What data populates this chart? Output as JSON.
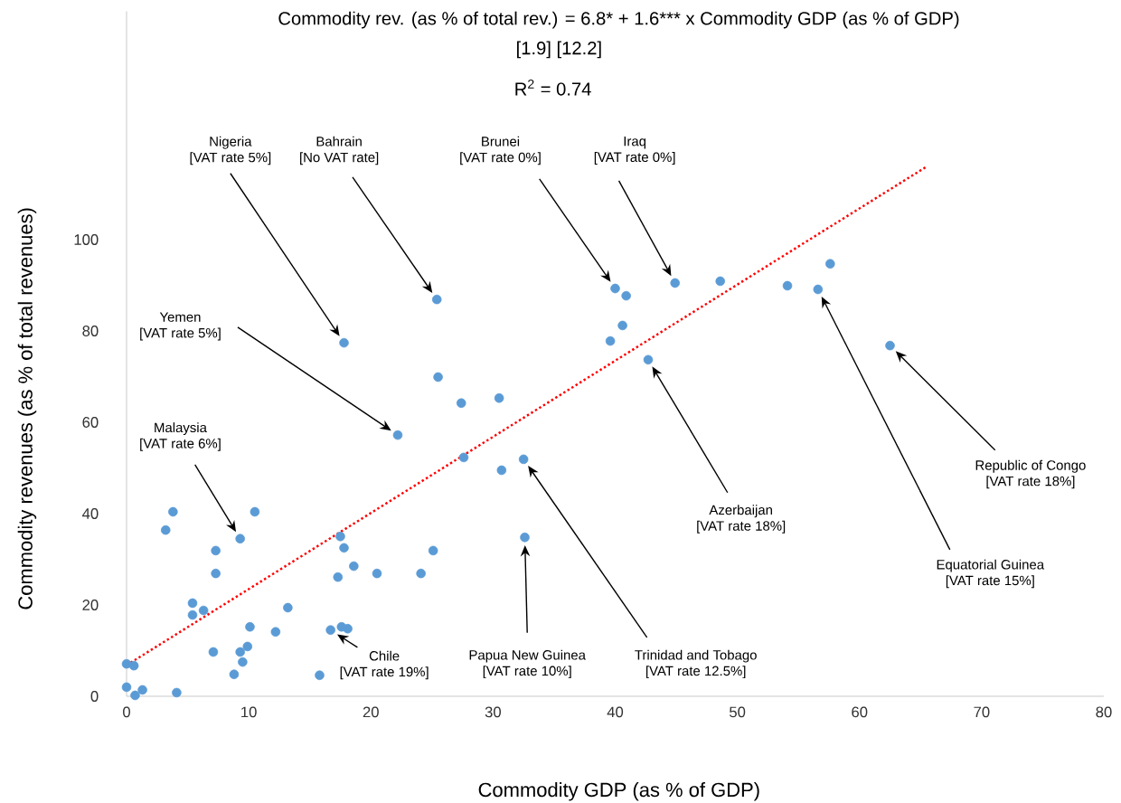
{
  "chart_data": {
    "type": "scatter",
    "title": "Commodity rev. (as % of total rev.) = 6.8* + 1.6*** x Commodity GDP (as % of GDP)",
    "subtitle": "[1.9]    [12.2]",
    "xlabel": "Commodity GDP (as % of GDP)",
    "ylabel": "Commodity revenues (as % of total revenues)",
    "xlim": [
      0,
      80
    ],
    "ylim": [
      0,
      150
    ],
    "xticks": [
      0,
      10,
      20,
      30,
      40,
      50,
      60,
      70,
      80
    ],
    "yticks": [
      0,
      20,
      40,
      60,
      80,
      100
    ],
    "series": [
      {
        "color": "#5b9bd5",
        "marker": "circle",
        "x": [
          0,
          0.6,
          0,
          0.7,
          1.3,
          4.1,
          3.8,
          3.2,
          10.5,
          9.3,
          7.3,
          7.3,
          17.5,
          17.8,
          18.6,
          17.3,
          20.5,
          24.1,
          25.1,
          32.6,
          5.4,
          6.3,
          5.4,
          13.2,
          10.1,
          12.2,
          16.7,
          17.6,
          18.1,
          7.1,
          9.3,
          9.9,
          9.5,
          8.8,
          15.8,
          25.4,
          17.8,
          25.5,
          27.4,
          30.5,
          22.2,
          27.6,
          32.5,
          30.7,
          40.0,
          39.6,
          40.9,
          44.9,
          48.6,
          54.1,
          56.6,
          57.6,
          62.5,
          40.6,
          42.7
        ],
        "values": [
          7.1,
          6.7,
          2.0,
          0.2,
          1.4,
          0.8,
          40.4,
          36.4,
          40.4,
          34.5,
          31.9,
          26.9,
          35.0,
          32.5,
          28.5,
          26.1,
          26.9,
          26.9,
          31.9,
          34.8,
          20.4,
          18.8,
          17.8,
          19.4,
          15.2,
          14.1,
          14.5,
          15.2,
          14.8,
          9.7,
          9.7,
          10.9,
          7.5,
          4.8,
          4.6,
          86.9,
          77.4,
          69.9,
          64.2,
          65.3,
          57.2,
          52.3,
          51.9,
          49.5,
          89.3,
          77.8,
          87.7,
          90.5,
          90.9,
          89.9,
          89.1,
          94.7,
          76.8,
          81.2,
          73.7
        ]
      },
      {
        "type": "line",
        "color": "#ff0000",
        "marker": "none",
        "line_style": "dotted",
        "x": [
          0,
          65.5
        ],
        "values": [
          6.8,
          116
        ]
      }
    ],
    "annotations": [
      "R$^{2}$ = 0.74",
      "Nigeria",
      "[VAT rate 5%]",
      "Bahrain",
      "[No VAT rate]",
      "Brunei",
      "[VAT rate 0%]",
      "Iraq",
      "[VAT rate 0%]",
      "Yemen",
      "[VAT rate 5%]",
      "Malaysia",
      "[VAT rate 6%]",
      "Chile",
      "[VAT rate 19%]",
      "Papua New Guinea",
      "[VAT rate 10%]",
      "Trinidad and Tobago",
      "[VAT rate 12.5%]",
      "Azerbaijan",
      "[VAT rate 18%]",
      "Equatorial Guinea",
      "[VAT rate 15%]",
      "Republic of Congo",
      "[VAT rate 18%]"
    ]
  }
}
